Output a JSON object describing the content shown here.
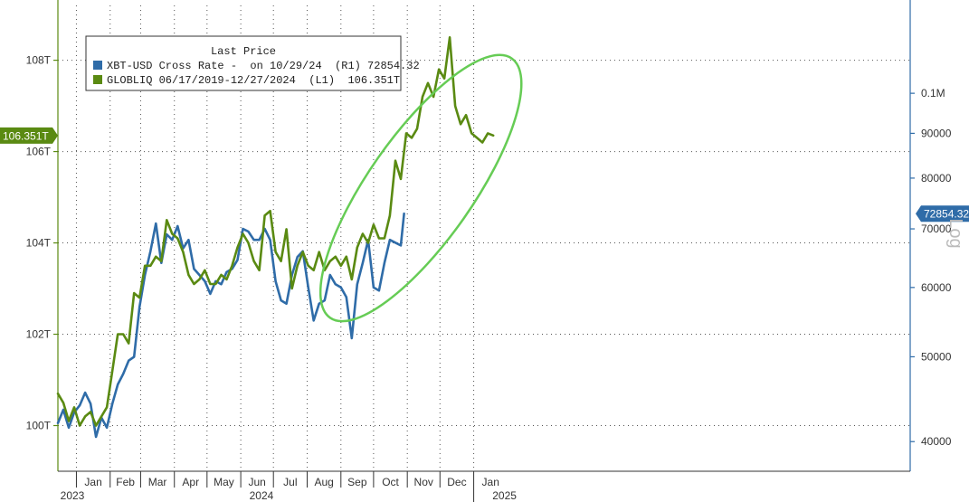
{
  "chart_data": {
    "type": "line",
    "legend": {
      "header": "Last Price",
      "placement": "top-left",
      "entries": [
        {
          "text": "XBT-USD Cross Rate -  on 10/29/24  (R1) 72854.32",
          "color": "#2f6ca8"
        },
        {
          "text": "GLOBLIQ 06/17/2019-12/27/2024  (L1)  106.351T",
          "color": "#5a8a12"
        }
      ]
    },
    "left_axis": {
      "ylim": [
        99.0,
        109.2
      ],
      "ticks": [
        {
          "value": 100,
          "label": "100T"
        },
        {
          "value": 102,
          "label": "102T"
        },
        {
          "value": 104,
          "label": "104T"
        },
        {
          "value": 106,
          "label": "106T"
        },
        {
          "value": 108,
          "label": "108T"
        }
      ],
      "last_value_badge": {
        "value": 106.351,
        "label": "106.351T",
        "color": "#5a8a12"
      }
    },
    "right_axis": {
      "scale": "log",
      "axis_label": "Log",
      "ylim": [
        37000,
        126000
      ],
      "ticks": [
        {
          "value": 40000,
          "label": "40000"
        },
        {
          "value": 50000,
          "label": "50000"
        },
        {
          "value": 60000,
          "label": "60000"
        },
        {
          "value": 70000,
          "label": "70000"
        },
        {
          "value": 80000,
          "label": "80000"
        },
        {
          "value": 90000,
          "label": "90000"
        },
        {
          "value": 100000,
          "label": "0.1M"
        }
      ],
      "last_value_badge": {
        "value": 72854.32,
        "label": "72854.32",
        "color": "#2f6ca8"
      }
    },
    "x_axis": {
      "xlim": [
        "2022-12-15",
        "2025-02-05"
      ],
      "month_ticks": [
        {
          "date": "2023-01-01",
          "label": "Jan"
        },
        {
          "date": "2023-02-01",
          "label": "Feb"
        },
        {
          "date": "2023-03-01",
          "label": "Mar"
        },
        {
          "date": "2023-04-01",
          "label": "Apr"
        },
        {
          "date": "2023-05-01",
          "label": "May"
        },
        {
          "date": "2023-06-01",
          "label": "Jun"
        },
        {
          "date": "2023-07-01",
          "label": "Jul"
        },
        {
          "date": "2023-08-01",
          "label": "Aug"
        },
        {
          "date": "2023-09-01",
          "label": "Sep"
        },
        {
          "date": "2023-10-01",
          "label": "Oct"
        },
        {
          "date": "2023-11-01",
          "label": "Nov"
        },
        {
          "date": "2023-12-01",
          "label": "Dec"
        },
        {
          "date": "2024-01-01",
          "label": "Jan"
        }
      ],
      "year_labels": [
        {
          "date": "2022-12-15",
          "label": "2023"
        },
        {
          "date": "2023-06-20",
          "label": "2024"
        },
        {
          "date": "2024-01-01",
          "label": "2025"
        }
      ]
    },
    "grid": true,
    "series": [
      {
        "name": "XBT-USD Cross Rate",
        "axis": "right",
        "color": "#2f6ca8",
        "dates": [
          "2022-12-15",
          "2022-12-20",
          "2022-12-25",
          "2022-12-30",
          "2023-01-04",
          "2023-01-09",
          "2023-01-14",
          "2023-01-19",
          "2023-01-24",
          "2023-01-29",
          "2023-02-03",
          "2023-02-08",
          "2023-02-13",
          "2023-02-18",
          "2023-02-23",
          "2023-02-28",
          "2023-03-05",
          "2023-03-10",
          "2023-03-15",
          "2023-03-20",
          "2023-03-25",
          "2023-03-30",
          "2023-04-04",
          "2023-04-09",
          "2023-04-14",
          "2023-04-19",
          "2023-04-24",
          "2023-04-29",
          "2023-05-04",
          "2023-05-09",
          "2023-05-14",
          "2023-05-19",
          "2023-05-24",
          "2023-05-29",
          "2023-06-03",
          "2023-06-08",
          "2023-06-13",
          "2023-06-18",
          "2023-06-23",
          "2023-06-28",
          "2023-07-03",
          "2023-07-08",
          "2023-07-13",
          "2023-07-18",
          "2023-07-23",
          "2023-07-28",
          "2023-08-02",
          "2023-08-07",
          "2023-08-12",
          "2023-08-17",
          "2023-08-22",
          "2023-08-27",
          "2023-09-01",
          "2023-09-06",
          "2023-09-11",
          "2023-09-16",
          "2023-09-21",
          "2023-09-26",
          "2023-10-01",
          "2023-10-06",
          "2023-10-11",
          "2023-10-16",
          "2023-10-21",
          "2023-10-26",
          "2023-10-29"
        ],
        "values": [
          42000,
          43500,
          41500,
          43200,
          44000,
          45500,
          44200,
          40500,
          42600,
          41500,
          44200,
          46500,
          47800,
          49500,
          50000,
          57000,
          62000,
          66000,
          71000,
          64000,
          69000,
          68000,
          70500,
          66500,
          68000,
          63000,
          62000,
          61000,
          59000,
          61000,
          60500,
          62500,
          63000,
          64500,
          70000,
          69500,
          68000,
          68000,
          70000,
          68000,
          61000,
          58000,
          57500,
          62000,
          65000,
          66000,
          60000,
          55000,
          57500,
          58000,
          62000,
          60500,
          60000,
          58500,
          52500,
          60500,
          64000,
          68000,
          60000,
          59500,
          64000,
          68000,
          67500,
          67000,
          72854.32
        ]
      },
      {
        "name": "GLOBLIQ",
        "axis": "left",
        "color": "#5a8a12",
        "dates": [
          "2022-12-15",
          "2022-12-20",
          "2022-12-25",
          "2022-12-30",
          "2023-01-04",
          "2023-01-09",
          "2023-01-14",
          "2023-01-19",
          "2023-01-24",
          "2023-01-29",
          "2023-02-03",
          "2023-02-08",
          "2023-02-13",
          "2023-02-18",
          "2023-02-23",
          "2023-02-28",
          "2023-03-05",
          "2023-03-10",
          "2023-03-15",
          "2023-03-20",
          "2023-03-25",
          "2023-03-30",
          "2023-04-04",
          "2023-04-09",
          "2023-04-14",
          "2023-04-19",
          "2023-04-24",
          "2023-04-29",
          "2023-05-04",
          "2023-05-09",
          "2023-05-14",
          "2023-05-19",
          "2023-05-24",
          "2023-05-29",
          "2023-06-03",
          "2023-06-08",
          "2023-06-13",
          "2023-06-18",
          "2023-06-23",
          "2023-06-28",
          "2023-07-03",
          "2023-07-08",
          "2023-07-13",
          "2023-07-18",
          "2023-07-23",
          "2023-07-28",
          "2023-08-02",
          "2023-08-07",
          "2023-08-12",
          "2023-08-17",
          "2023-08-22",
          "2023-08-27",
          "2023-09-01",
          "2023-09-06",
          "2023-09-11",
          "2023-09-16",
          "2023-09-21",
          "2023-09-26",
          "2023-10-01",
          "2023-10-06",
          "2023-10-11",
          "2023-10-16",
          "2023-10-21",
          "2023-10-26",
          "2023-10-31",
          "2023-11-05",
          "2023-11-10",
          "2023-11-15",
          "2023-11-20",
          "2023-11-25",
          "2023-11-30",
          "2023-12-05",
          "2023-12-10",
          "2023-12-15",
          "2023-12-20",
          "2023-12-25",
          "2023-12-30",
          "2024-01-04",
          "2024-01-09",
          "2024-01-14",
          "2024-01-19"
        ],
        "values": [
          100.7,
          100.5,
          100.1,
          100.4,
          100.0,
          100.2,
          100.3,
          100.0,
          100.2,
          100.4,
          101.2,
          102.0,
          102.0,
          101.8,
          102.9,
          102.8,
          103.5,
          103.5,
          103.7,
          103.6,
          104.5,
          104.2,
          104.1,
          103.8,
          103.3,
          103.1,
          103.2,
          103.4,
          103.1,
          103.1,
          103.3,
          103.2,
          103.5,
          103.9,
          104.2,
          104.0,
          103.6,
          103.4,
          104.6,
          104.7,
          103.8,
          103.6,
          104.3,
          103.0,
          103.5,
          103.8,
          103.5,
          103.4,
          103.8,
          103.4,
          103.6,
          103.7,
          103.5,
          103.7,
          103.2,
          103.9,
          104.2,
          104.0,
          104.4,
          104.1,
          104.1,
          104.6,
          105.8,
          105.4,
          106.4,
          106.3,
          106.5,
          107.2,
          107.5,
          107.2,
          107.8,
          107.6,
          108.5,
          107.0,
          106.6,
          106.8,
          106.4,
          106.3,
          106.2,
          106.4,
          106.351
        ]
      }
    ]
  },
  "annotation": {
    "type": "ellipse",
    "color": "#66cc55"
  }
}
